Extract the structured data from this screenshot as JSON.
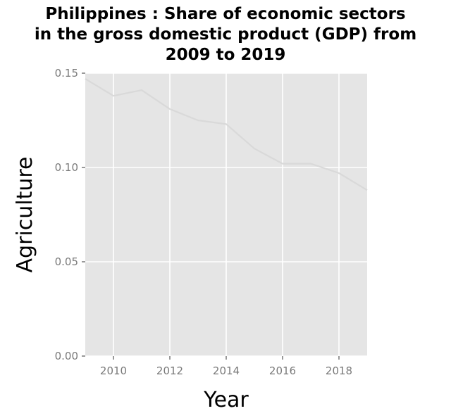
{
  "chart_data": {
    "type": "line",
    "title_lines": [
      "Philippines : Share of economic sectors",
      "in the gross domestic product (GDP) from",
      "2009 to 2019"
    ],
    "xlabel": "Year",
    "ylabel": "Agriculture",
    "xlim": [
      2009,
      2019
    ],
    "ylim": [
      0,
      0.15
    ],
    "x_ticks": [
      2010,
      2012,
      2014,
      2016,
      2018
    ],
    "x_tick_labels": [
      "2010",
      "2012",
      "2014",
      "2016",
      "2018"
    ],
    "y_ticks": [
      0,
      0.05,
      0.1,
      0.15
    ],
    "y_tick_labels": [
      "0.00",
      "0.05",
      "0.10",
      "0.15"
    ],
    "grid": true,
    "series": [
      {
        "x": [
          2009,
          2010,
          2011,
          2012,
          2013,
          2014,
          2015,
          2016,
          2017,
          2018,
          2019
        ],
        "values": [
          0.147,
          0.138,
          0.141,
          0.131,
          0.125,
          0.123,
          0.11,
          0.102,
          0.102,
          0.097,
          0.088
        ]
      }
    ],
    "colors": {
      "panel": "#e5e5e5",
      "grid": "#ffffff",
      "line": "#d9d9d9"
    }
  }
}
